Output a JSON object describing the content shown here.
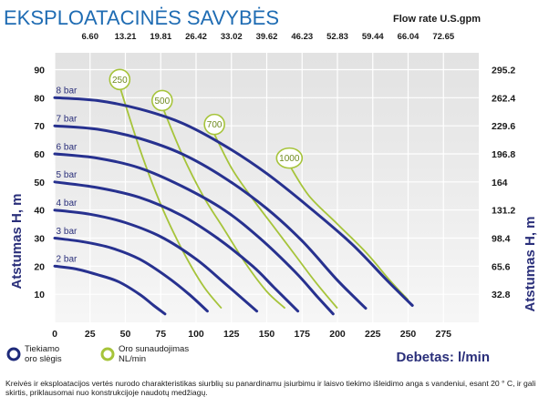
{
  "header": {
    "title": "EKSPLOATACINĖS SAVYBĖS",
    "flow_rate_label": "Flow rate U.S.gpm"
  },
  "footer": {
    "note": "Kreivės ir eksploatacijos vertės nurodo charakteristikas siurblių su panardinamu įsiurbimu ir laisvo tiekimo išleidimo anga s vandeniui, esant 20 ° C, ir gali skirtis, priklausomai nuo konstrukcijoje naudotų medžiagų."
  },
  "colors": {
    "title": "#1f6cb3",
    "pressure_curve": "#27318f",
    "air_curve": "#a6c43a",
    "label_dark": "#2a2f7a",
    "grid": "#ffffff"
  },
  "chart_data": {
    "type": "line",
    "xlabel": "Debetas: l/min",
    "ylabel": "Atstumas H, m",
    "ylabel_right": "Atstumas H, m",
    "x_ticks": [
      0,
      25,
      50,
      75,
      100,
      125,
      150,
      175,
      200,
      225,
      250,
      275
    ],
    "x_tick_labels": [
      "0",
      "25",
      "50",
      "75",
      "100",
      "125",
      "150",
      "175",
      "200",
      "225",
      "250",
      "275"
    ],
    "y_ticks": [
      10,
      20,
      30,
      40,
      50,
      60,
      70,
      80,
      90
    ],
    "y_tick_labels": [
      "10",
      "20",
      "30",
      "40",
      "50",
      "60",
      "70",
      "80",
      "90"
    ],
    "xlim": [
      0,
      300
    ],
    "ylim": [
      0,
      96
    ],
    "top_axis": {
      "labels": [
        "6.60",
        "13.21",
        "19.81",
        "26.42",
        "33.02",
        "39.62",
        "46.23",
        "52.83",
        "59.44",
        "66.04",
        "72.65"
      ],
      "positions": [
        25,
        50,
        75,
        100,
        125,
        150,
        175,
        200,
        225,
        250,
        275
      ]
    },
    "right_axis": {
      "labels": [
        "295.2",
        "262.4",
        "229.6",
        "196.8",
        "164",
        "131.2",
        "98.4",
        "65.6",
        "32.8"
      ],
      "positions": [
        90,
        80,
        70,
        60,
        50,
        40,
        30,
        20,
        10
      ]
    },
    "grid": true,
    "legend": {
      "position": "bottom-left",
      "items": [
        {
          "label": "Tiekiamo oro slėgis",
          "line1": "Tiekiamo",
          "line2": "oro slėgis",
          "kind": "pressure"
        },
        {
          "label": "Oro sunaudojimas NL/min",
          "line1": "Oro sunaudojimas",
          "line2": "NL/min",
          "kind": "air"
        }
      ]
    },
    "pressure_series": [
      {
        "name": "2 bar",
        "points": [
          [
            0,
            20
          ],
          [
            15,
            19
          ],
          [
            30,
            17
          ],
          [
            45,
            14.5
          ],
          [
            60,
            10
          ],
          [
            70,
            6
          ],
          [
            78,
            3
          ]
        ]
      },
      {
        "name": "3 bar",
        "points": [
          [
            0,
            30
          ],
          [
            20,
            28.7
          ],
          [
            40,
            26.5
          ],
          [
            60,
            22.5
          ],
          [
            80,
            16
          ],
          [
            95,
            10
          ],
          [
            108,
            4
          ]
        ]
      },
      {
        "name": "4 bar",
        "points": [
          [
            0,
            40
          ],
          [
            25,
            38.5
          ],
          [
            50,
            35.5
          ],
          [
            75,
            30.5
          ],
          [
            100,
            22.5
          ],
          [
            120,
            14
          ],
          [
            143,
            4
          ]
        ]
      },
      {
        "name": "5 bar",
        "points": [
          [
            0,
            50
          ],
          [
            30,
            48
          ],
          [
            60,
            44.5
          ],
          [
            90,
            38
          ],
          [
            115,
            30
          ],
          [
            140,
            20
          ],
          [
            155,
            12.5
          ],
          [
            172,
            4
          ]
        ]
      },
      {
        "name": "6 bar",
        "points": [
          [
            0,
            60
          ],
          [
            30,
            58.5
          ],
          [
            60,
            55
          ],
          [
            90,
            48.5
          ],
          [
            120,
            40
          ],
          [
            145,
            30
          ],
          [
            170,
            18
          ],
          [
            186,
            9
          ],
          [
            197,
            3
          ]
        ]
      },
      {
        "name": "7 bar",
        "points": [
          [
            0,
            70
          ],
          [
            30,
            68.8
          ],
          [
            60,
            65.5
          ],
          [
            90,
            60
          ],
          [
            120,
            51.5
          ],
          [
            150,
            40.5
          ],
          [
            175,
            29
          ],
          [
            200,
            15
          ],
          [
            220,
            5
          ]
        ]
      },
      {
        "name": "8 bar",
        "points": [
          [
            0,
            80
          ],
          [
            30,
            79
          ],
          [
            60,
            76
          ],
          [
            90,
            71
          ],
          [
            120,
            63
          ],
          [
            150,
            53
          ],
          [
            180,
            41
          ],
          [
            210,
            28
          ],
          [
            235,
            15
          ],
          [
            253,
            6
          ]
        ]
      }
    ],
    "air_series": [
      {
        "name": "250",
        "points": [
          [
            46,
            84
          ],
          [
            60,
            62
          ],
          [
            75,
            42
          ],
          [
            90,
            26
          ],
          [
            105,
            13
          ],
          [
            118,
            5
          ]
        ]
      },
      {
        "name": "500",
        "points": [
          [
            76,
            77
          ],
          [
            90,
            60
          ],
          [
            105,
            45
          ],
          [
            120,
            33
          ],
          [
            135,
            21
          ],
          [
            150,
            11
          ],
          [
            163,
            5
          ]
        ]
      },
      {
        "name": "700",
        "points": [
          [
            112,
            68
          ],
          [
            125,
            55
          ],
          [
            140,
            44
          ],
          [
            155,
            34
          ],
          [
            170,
            24
          ],
          [
            185,
            14
          ],
          [
            200,
            5
          ]
        ]
      },
      {
        "name": "1000",
        "points": [
          [
            166,
            56
          ],
          [
            180,
            45
          ],
          [
            200,
            35
          ],
          [
            220,
            25
          ],
          [
            237,
            15
          ],
          [
            250,
            8
          ]
        ]
      }
    ],
    "pressure_labels": [
      {
        "text": "8 bar",
        "x": 1,
        "y": 81.5
      },
      {
        "text": "7 bar",
        "x": 1,
        "y": 71.5
      },
      {
        "text": "6 bar",
        "x": 1,
        "y": 61.5
      },
      {
        "text": "5 bar",
        "x": 1,
        "y": 51.5
      },
      {
        "text": "4 bar",
        "x": 1,
        "y": 41.5
      },
      {
        "text": "3 bar",
        "x": 1,
        "y": 31.5
      },
      {
        "text": "2 bar",
        "x": 1,
        "y": 21.5
      }
    ],
    "air_labels": [
      {
        "text": "250",
        "x": 46,
        "y": 86.5
      },
      {
        "text": "500",
        "x": 76,
        "y": 79
      },
      {
        "text": "700",
        "x": 113,
        "y": 70.5
      },
      {
        "text": "1000",
        "x": 166,
        "y": 58.5
      }
    ]
  }
}
